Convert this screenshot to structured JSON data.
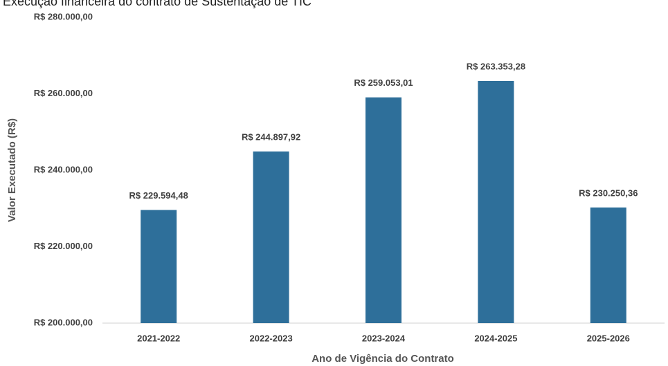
{
  "chart_data": {
    "type": "bar",
    "title": "Execução financeira do contrato de Sustentação de TIC",
    "xlabel": "Ano de Vigência do Contrato",
    "ylabel": "Valor Executado (R$)",
    "categories": [
      "2021-2022",
      "2022-2023",
      "2023-2024",
      "2024-2025",
      "2025-2026"
    ],
    "values": [
      229594.48,
      244897.92,
      259053.01,
      263353.28,
      230250.36
    ],
    "value_labels": [
      "R$ 229.594,48",
      "R$ 244.897,92",
      "R$ 259.053,01",
      "R$ 263.353,28",
      "R$ 230.250,36"
    ],
    "color": "#2e6f9a",
    "ylim": [
      200000,
      280000
    ],
    "yticks": [
      {
        "value": 200000,
        "label": "R$ 200.000,00"
      },
      {
        "value": 220000,
        "label": "R$ 220.000,00"
      },
      {
        "value": 240000,
        "label": "R$ 240.000,00"
      },
      {
        "value": 260000,
        "label": "R$ 260.000,00"
      },
      {
        "value": 280000,
        "label": "R$ 280.000,00"
      }
    ],
    "grid": false
  }
}
